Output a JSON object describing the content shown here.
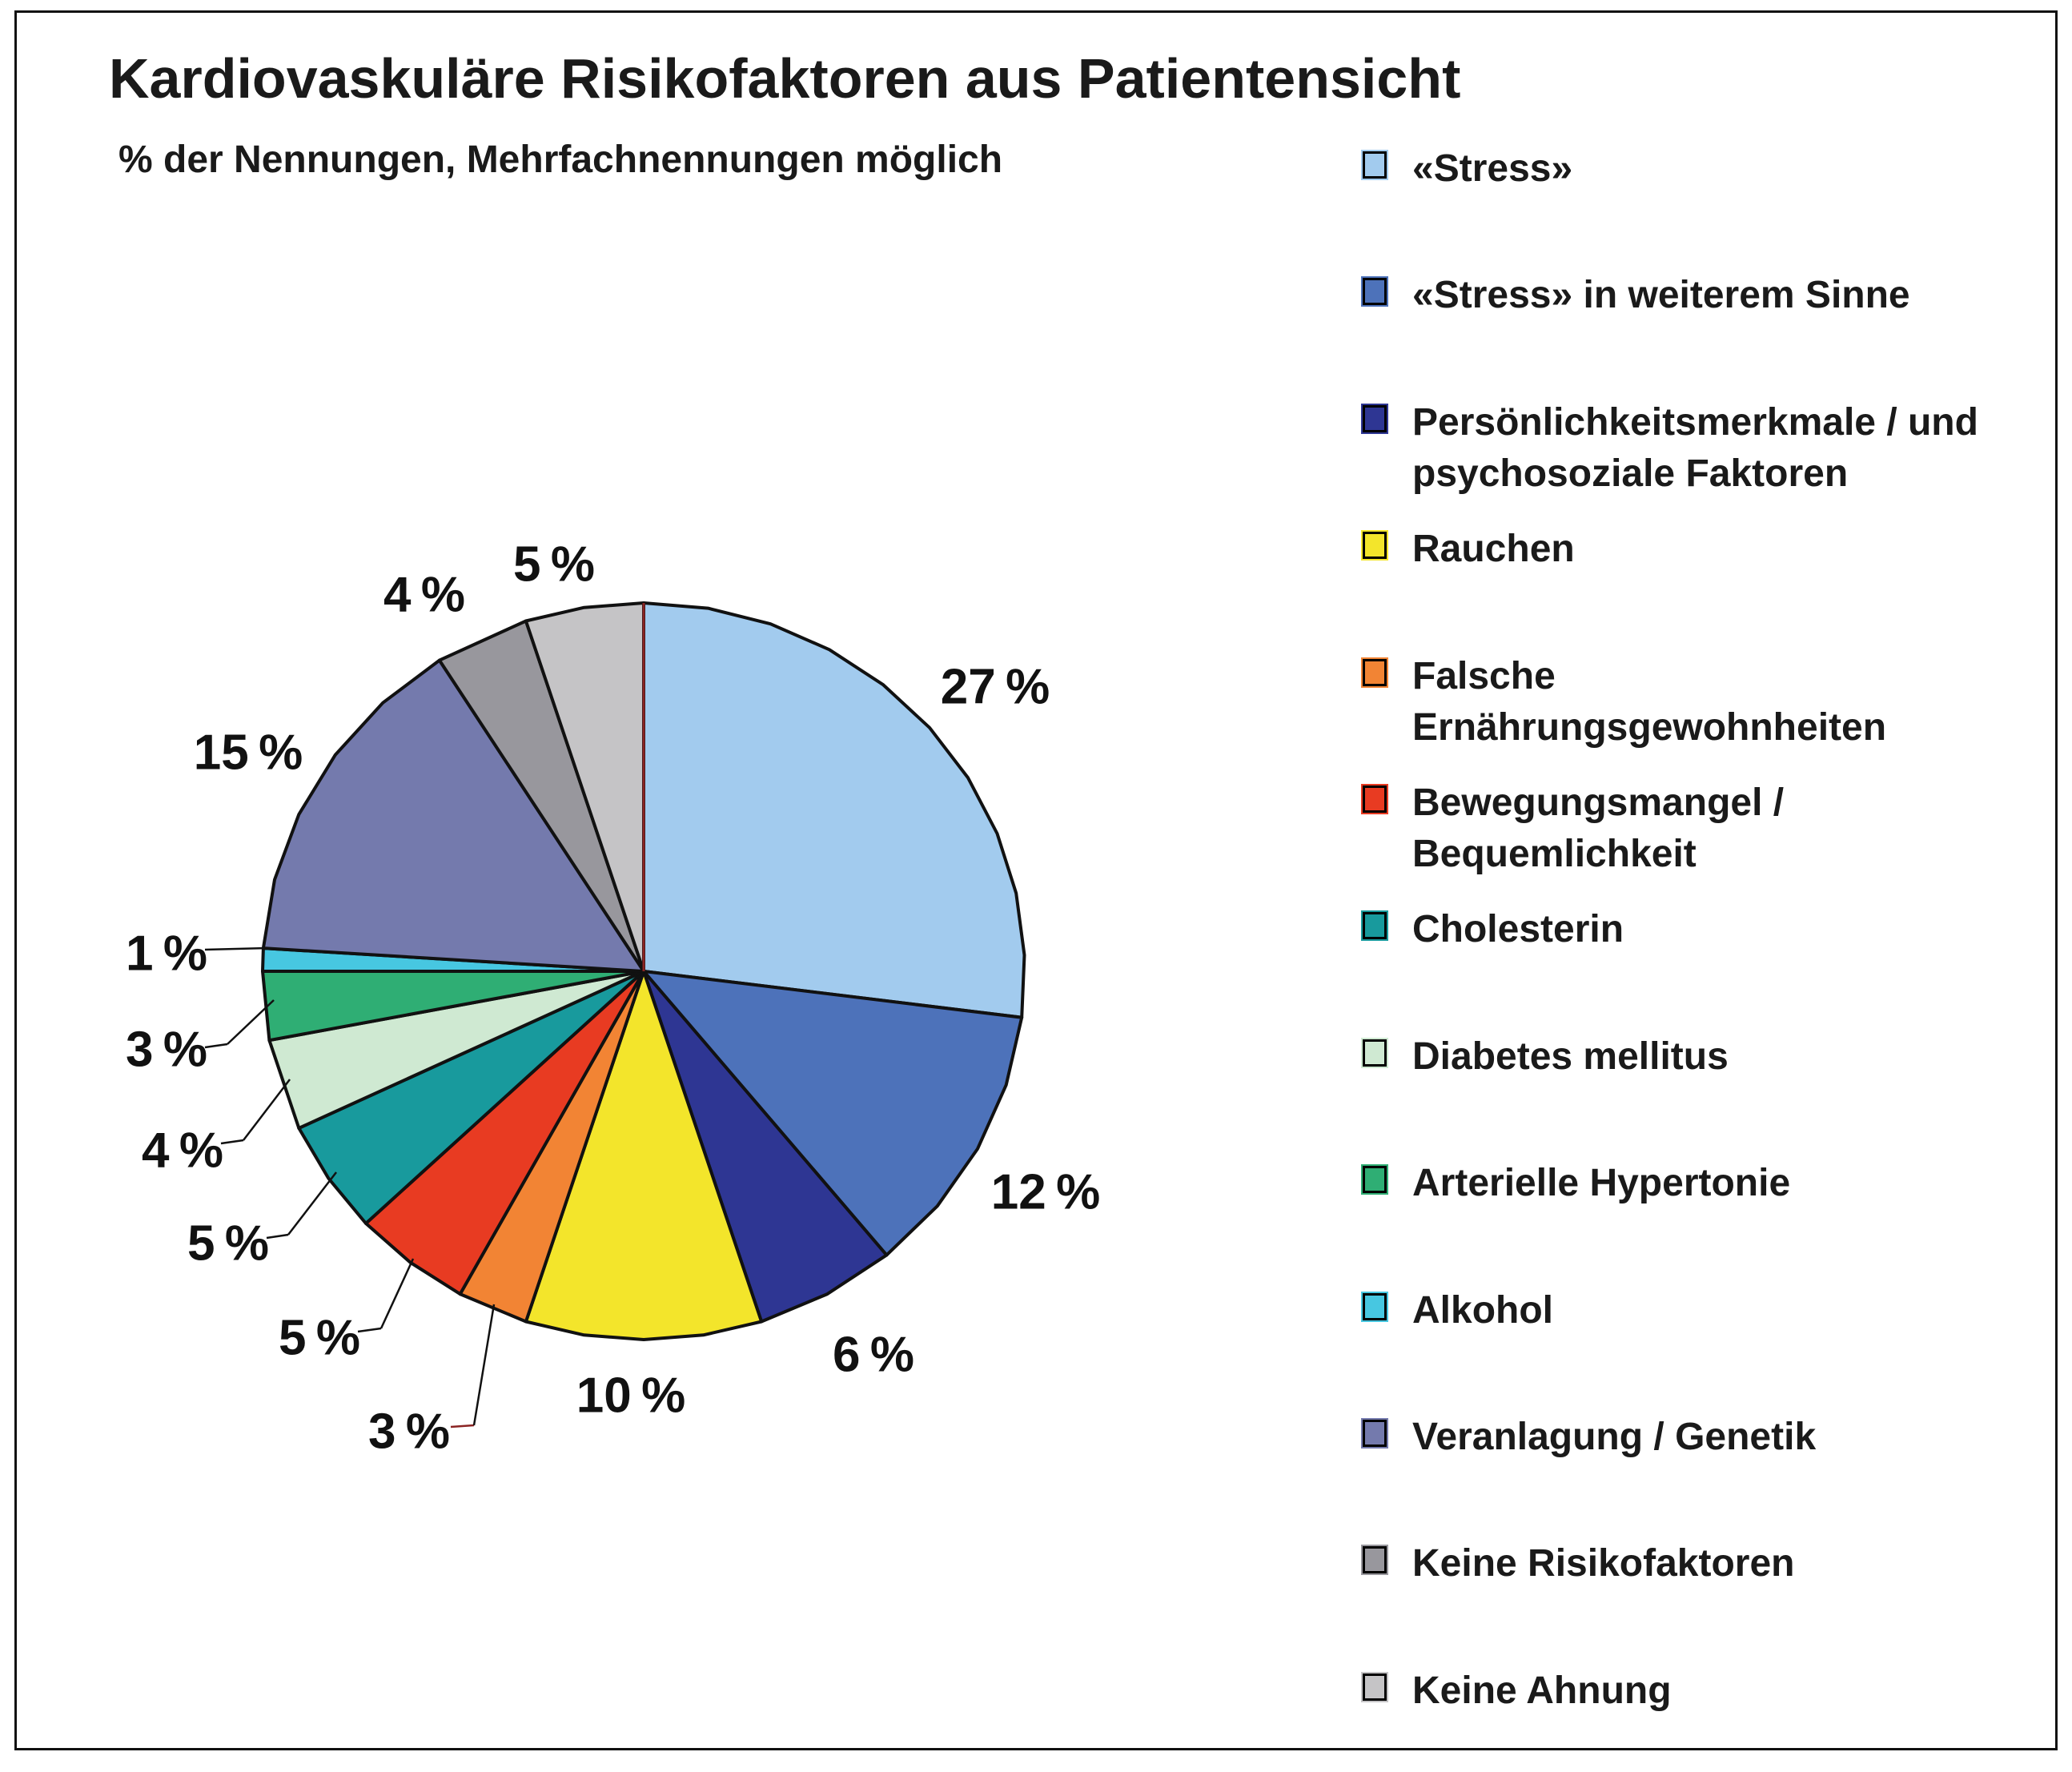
{
  "title": "Kardiovaskuläre Risikofaktoren aus Patientensicht",
  "subtitle": "% der Nennungen, Mehrfachnennungen möglich",
  "chart_data": {
    "type": "pie",
    "title": "Kardiovaskuläre Risikofaktoren aus Patientensicht",
    "subtitle": "% der Nennungen, Mehrfachnennungen möglich",
    "unit": "%",
    "start_angle": "12-oclock",
    "direction": "clockwise",
    "legend_position": "right",
    "total": 100,
    "slices": [
      {
        "label": "«Stress»",
        "value": 27,
        "display": "27 %",
        "color": "#a2cbee",
        "legend_lines": [
          "«Stress»"
        ]
      },
      {
        "label": "«Stress» in weiterem Sinne",
        "value": 12,
        "display": "12 %",
        "color": "#4d72ba",
        "legend_lines": [
          "«Stress» in weiterem Sinne"
        ]
      },
      {
        "label": "Persönlichkeitsmerkmale / und psychosoziale Faktoren",
        "value": 6,
        "display": "6 %",
        "color": "#2e3693",
        "legend_lines": [
          "Persönlichkeitsmerkmale / und",
          "psychosoziale Faktoren"
        ]
      },
      {
        "label": "Rauchen",
        "value": 10,
        "display": "10 %",
        "color": "#f3e52b",
        "legend_lines": [
          "Rauchen"
        ]
      },
      {
        "label": "Falsche Ernährungsgewohnheiten",
        "value": 3,
        "display": "3 %",
        "color": "#f28434",
        "legend_lines": [
          "Falsche",
          "Ernährungsgewohnheiten"
        ]
      },
      {
        "label": "Bewegungsmangel / Bequemlichkeit",
        "value": 5,
        "display": "5 %",
        "color": "#e83b22",
        "legend_lines": [
          "Bewegungsmangel /",
          "Bequemlichkeit"
        ]
      },
      {
        "label": "Cholesterin",
        "value": 5,
        "display": "5 %",
        "color": "#189a9d",
        "legend_lines": [
          "Cholesterin"
        ]
      },
      {
        "label": "Diabetes mellitus",
        "value": 4,
        "display": "4 %",
        "color": "#cfe9d2",
        "legend_lines": [
          "Diabetes mellitus"
        ]
      },
      {
        "label": "Arterielle Hypertonie",
        "value": 3,
        "display": "3 %",
        "color": "#2fae74",
        "legend_lines": [
          "Arterielle Hypertonie"
        ]
      },
      {
        "label": "Alkohol",
        "value": 1,
        "display": "1 %",
        "color": "#47c7e1",
        "legend_lines": [
          "Alkohol"
        ]
      },
      {
        "label": "Veranlagung / Genetik",
        "value": 15,
        "display": "15 %",
        "color": "#747aad",
        "legend_lines": [
          "Veranlagung / Genetik"
        ]
      },
      {
        "label": "Keine Risikofaktoren",
        "value": 4,
        "display": "4 %",
        "color": "#98979d",
        "legend_lines": [
          "Keine Risikofaktoren"
        ]
      },
      {
        "label": "Keine Ahnung",
        "value": 5,
        "display": "5 %",
        "color": "#c5c4c6",
        "legend_lines": [
          "Keine Ahnung"
        ]
      }
    ],
    "colors": {
      "background": "#ffffff",
      "outline": "#111111",
      "top_divider": "#8b2423",
      "text": "#1a1a1a",
      "frame": "#111111"
    }
  }
}
